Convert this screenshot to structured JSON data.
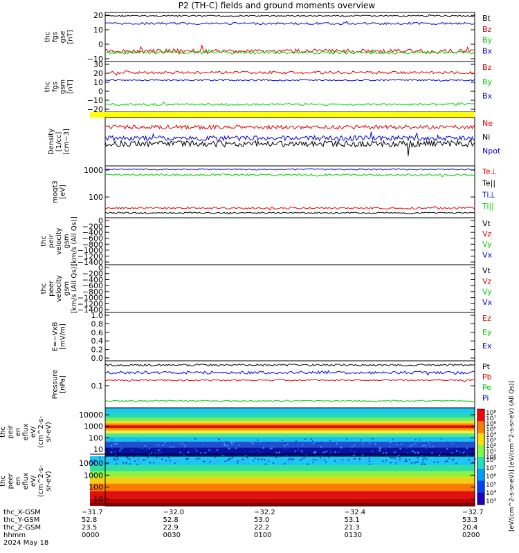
{
  "title": "P2 (TH-C) fields and ground moments overview",
  "colors": {
    "black": "#000000",
    "red": "#e00000",
    "green": "#00d000",
    "blue": "#0000e0",
    "yellow": "#ffff00"
  },
  "chart_data": [
    {
      "type": "line",
      "ylabel": [
        "thc",
        "fgs",
        "gse",
        "[nT]"
      ],
      "yticks": [
        "20",
        "10",
        "0",
        "−10"
      ],
      "ylim": [
        -18,
        22
      ],
      "legend": [
        {
          "name": "Bt",
          "color": "black"
        },
        {
          "name": "Bz",
          "color": "red"
        },
        {
          "name": "By",
          "color": "green"
        },
        {
          "name": "Bx",
          "color": "blue"
        }
      ],
      "series": [
        {
          "name": "Bt",
          "color": "black",
          "base": 18
        },
        {
          "name": "Bx",
          "color": "blue",
          "base": 13
        },
        {
          "name": "Bz",
          "color": "red",
          "base": -9
        },
        {
          "name": "By",
          "color": "green",
          "base": -10
        }
      ]
    },
    {
      "type": "line",
      "ylabel": [
        "thc",
        "fgs",
        "gsm",
        "[nT]"
      ],
      "yticks": [
        "30",
        "20",
        "10",
        "0",
        "−10",
        "−20"
      ],
      "ylim": [
        -30,
        32
      ],
      "legend": [
        {
          "name": "Bz",
          "color": "red"
        },
        {
          "name": "By",
          "color": "green"
        },
        {
          "name": "Bx",
          "color": "blue"
        }
      ],
      "series": [
        {
          "name": "Bz",
          "color": "red",
          "base": 20
        },
        {
          "name": "Bx",
          "color": "blue",
          "base": 9
        },
        {
          "name": "By",
          "color": "green",
          "base": -22
        }
      ]
    },
    {
      "type": "bar",
      "note": "yellow status bar"
    },
    {
      "type": "line",
      "ylabel": [
        "Density",
        "[1/cc]",
        "[cm−3]"
      ],
      "yticks": [],
      "legend": [
        {
          "name": "Ne",
          "color": "red"
        },
        {
          "name": "Ni",
          "color": "black"
        },
        {
          "name": "Npot",
          "color": "blue"
        }
      ]
    },
    {
      "type": "line",
      "ylabel": [
        "moqt3",
        "[eV]"
      ],
      "yticks": [
        "1000",
        "100"
      ],
      "legend": [
        {
          "name": "Te⊥",
          "color": "red"
        },
        {
          "name": "Te||",
          "color": "black"
        },
        {
          "name": "Ti⊥",
          "color": "blue"
        },
        {
          "name": "Ti||",
          "color": "green"
        }
      ]
    },
    {
      "type": "line",
      "ylabel": [
        "thc",
        "peir",
        "velocity",
        "gsm",
        "[km/s (All Qs)]"
      ],
      "yticks": [
        "0",
        "−200",
        "−400",
        "−600",
        "−800",
        "−1000",
        "−1200",
        "−1400"
      ],
      "ylim": [
        -1450,
        50
      ],
      "legend": [
        {
          "name": "Vt",
          "color": "black"
        },
        {
          "name": "Vz",
          "color": "red"
        },
        {
          "name": "Vy",
          "color": "green"
        },
        {
          "name": "Vx",
          "color": "blue"
        }
      ]
    },
    {
      "type": "line",
      "ylabel": [
        "thc",
        "peer",
        "velocity",
        "gsm",
        "[km/s (All Qs)]"
      ],
      "yticks": [
        "0",
        "−200",
        "−400",
        "−600",
        "−800",
        "−1000",
        "−1200",
        "−1400"
      ],
      "ylim": [
        -1450,
        50
      ],
      "legend": [
        {
          "name": "Vt",
          "color": "black"
        },
        {
          "name": "Vz",
          "color": "red"
        },
        {
          "name": "Vy",
          "color": "green"
        },
        {
          "name": "Vx",
          "color": "blue"
        }
      ]
    },
    {
      "type": "line",
      "ylabel": [
        "E=−VxB",
        "[mV/m]"
      ],
      "yticks": [
        "1.0",
        "0.8",
        "0.6",
        "0.4",
        "0.2",
        "0.0"
      ],
      "ylim": [
        0,
        1
      ],
      "legend": [
        {
          "name": "Ez",
          "color": "red"
        },
        {
          "name": "Ey",
          "color": "green"
        },
        {
          "name": "Ex",
          "color": "blue"
        }
      ]
    },
    {
      "type": "line",
      "ylabel": [
        "Pressure",
        "[nPa]"
      ],
      "yticks": [
        "0.1"
      ],
      "legend": [
        {
          "name": "Pt",
          "color": "black"
        },
        {
          "name": "Pb",
          "color": "red"
        },
        {
          "name": "Pe",
          "color": "green"
        },
        {
          "name": "Pi",
          "color": "blue"
        }
      ]
    },
    {
      "type": "heatmap",
      "ylabel": [
        "thc",
        "peir",
        "en",
        "eflux",
        "eV/",
        "(cm^2-s-",
        "sr-eV)"
      ],
      "yticks": [
        "10000",
        "1000",
        "100",
        "10"
      ]
    },
    {
      "type": "heatmap",
      "ylabel": [
        "thc",
        "peer",
        "en",
        "eflux",
        "eV/",
        "(cm^2-s-",
        "sr-eV)"
      ],
      "yticks": [
        "10000",
        "1000",
        "100",
        "10"
      ]
    }
  ],
  "colorbar": {
    "ticks": [
      "10⁸",
      "10⁷",
      "10⁶",
      "10⁵",
      "10⁴",
      "10³",
      "10²",
      "10¹",
      "10⁰"
    ],
    "ticks2": [
      "10⁸",
      "10⁷",
      "10⁶",
      "10⁵",
      "10⁴",
      "10³"
    ],
    "label": "[eV/(cm^2-s-sr-eV)] [eV/(cm^2-s-sr-eV) (All Qs)]"
  },
  "xaxis": {
    "row_labels": [
      "thc_X-GSM",
      "thc_Y-GSM",
      "thc_Z-GSM",
      "hhmm",
      "2024 May 18"
    ],
    "ticks": [
      {
        "X": "−31.7",
        "Y": "52.8",
        "Z": "23.5",
        "t": "0000"
      },
      {
        "X": "−32.0",
        "Y": "52.8",
        "Z": "22.9",
        "t": "0030"
      },
      {
        "X": "−32.2",
        "Y": "53.0",
        "Z": "22.2",
        "t": "0100"
      },
      {
        "X": "−32.4",
        "Y": "53.1",
        "Z": "21.3",
        "t": "0130"
      },
      {
        "X": "−32.7",
        "Y": "53.3",
        "Z": "20.4",
        "t": "0200"
      }
    ]
  }
}
